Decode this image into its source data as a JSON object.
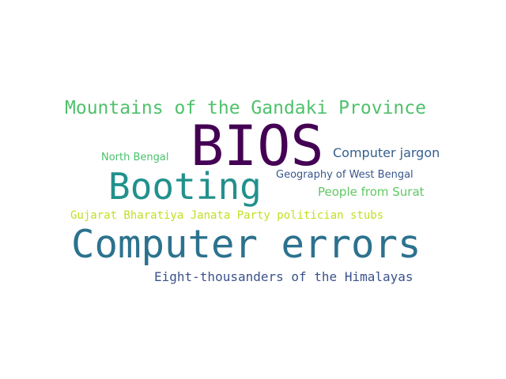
{
  "word_cloud": {
    "words": [
      {
        "text": "Mountains of the Gandaki Province",
        "color": "#4fc16b"
      },
      {
        "text": "BIOS",
        "color": "#440154"
      },
      {
        "text": "Computer jargon",
        "color": "#35608d"
      },
      {
        "text": "North Bengal",
        "color": "#4ac16d"
      },
      {
        "text": "Geography of West Bengal",
        "color": "#39568c"
      },
      {
        "text": "Booting",
        "color": "#21918c"
      },
      {
        "text": "People from Surat",
        "color": "#5ec962"
      },
      {
        "text": "Gujarat Bharatiya Janata Party politician stubs",
        "color": "#c2df23"
      },
      {
        "text": "Computer errors",
        "color": "#2c728e"
      },
      {
        "text": "Eight-thousanders of the Himalayas",
        "color": "#3b528b"
      }
    ]
  }
}
